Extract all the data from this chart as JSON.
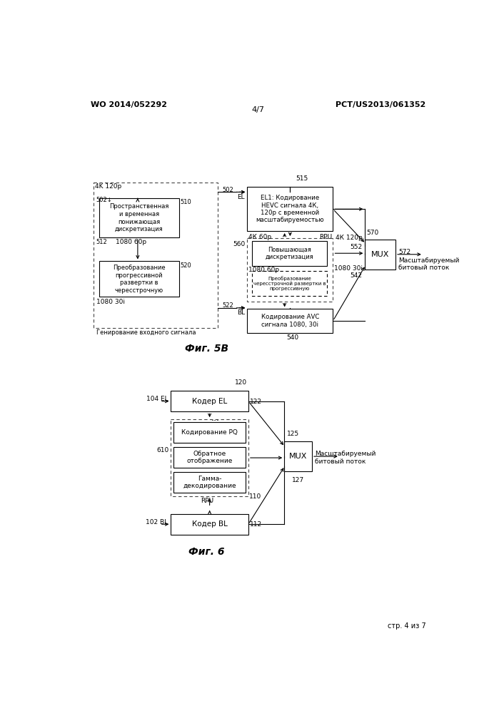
{
  "page_header_left": "WO 2014/052292",
  "page_header_right": "PCT/US2013/061352",
  "page_number_center": "4/7",
  "page_footer": "стр. 4 из 7",
  "fig5b_title": "Фиг. 5B",
  "fig6_title": "Фиг. 6",
  "bg_color": "#ffffff"
}
